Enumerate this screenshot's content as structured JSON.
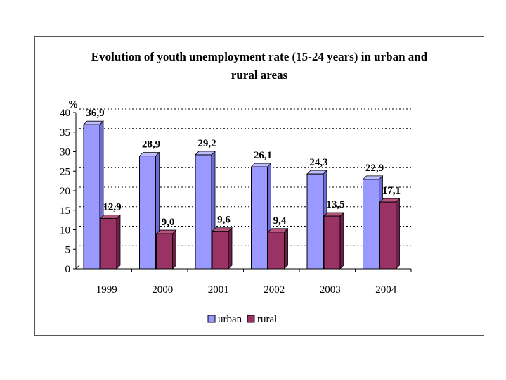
{
  "chart_data": {
    "type": "bar",
    "title": "Evolution of youth unemployment rate (15-24 years) in urban and rural areas",
    "title_lines": [
      "Evolution of youth unemployment rate (15-24 years) in urban and",
      "rural areas"
    ],
    "ylabel": "%",
    "xlabel": "",
    "ylim": [
      0,
      40
    ],
    "yticks": [
      0,
      5,
      10,
      15,
      20,
      25,
      30,
      35,
      40
    ],
    "categories": [
      "1999",
      "2000",
      "2001",
      "2002",
      "2003",
      "2004"
    ],
    "series": [
      {
        "name": "urban",
        "values": [
          36.9,
          28.9,
          29.2,
          26.1,
          24.3,
          22.9
        ],
        "labels": [
          "36,9",
          "28,9",
          "29,2",
          "26,1",
          "24,3",
          "22,9"
        ],
        "color_front": "#9999ff",
        "color_side": "#6b6bd6",
        "color_top": "#bdbdff"
      },
      {
        "name": "rural",
        "values": [
          12.9,
          9.0,
          9.6,
          9.4,
          13.5,
          17.1
        ],
        "labels": [
          "12,9",
          "9,0",
          "9,6",
          "9,4",
          "13,5",
          "17,1"
        ],
        "color_front": "#993366",
        "color_side": "#6e1f47",
        "color_top": "#b8557f"
      }
    ],
    "grid": true,
    "legend_position": "bottom"
  }
}
